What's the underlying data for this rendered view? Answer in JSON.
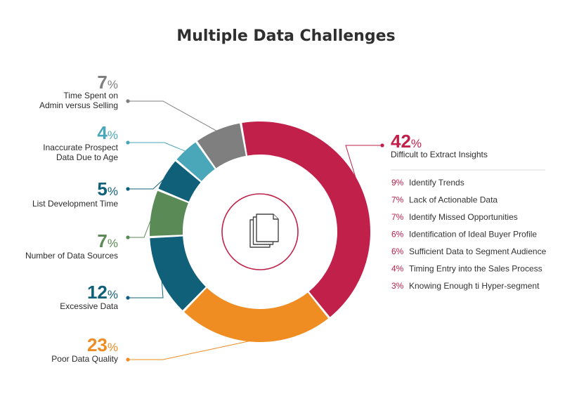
{
  "chart_data": {
    "type": "pie",
    "title": "Multiple Data Challenges",
    "slices": [
      {
        "value": 42,
        "pct_text": "42",
        "label_lines": [
          "Difficult to Extract Insights"
        ],
        "color": "#c0204a"
      },
      {
        "value": 23,
        "pct_text": "23",
        "label_lines": [
          "Poor Data Quality"
        ],
        "color": "#ef8c22"
      },
      {
        "value": 12,
        "pct_text": "12",
        "label_lines": [
          "Excessive Data"
        ],
        "color": "#11607a"
      },
      {
        "value": 7,
        "pct_text": "7",
        "label_lines": [
          "Number of Data Sources"
        ],
        "color": "#5a8a55"
      },
      {
        "value": 5,
        "pct_text": "5",
        "label_lines": [
          "List Development Time"
        ],
        "color": "#11607a"
      },
      {
        "value": 4,
        "pct_text": "4",
        "label_lines": [
          "Inaccurate Prospect",
          "Data Due to Age"
        ],
        "color": "#4aa7ba"
      },
      {
        "value": 7,
        "pct_text": "7",
        "label_lines": [
          "Time Spent on",
          "Admin versus Selling"
        ],
        "color": "#7f7f7f"
      }
    ],
    "breakdown": {
      "parent": "Difficult to Extract Insights",
      "items": [
        {
          "pct": "9%",
          "label": "Identify Trends"
        },
        {
          "pct": "7%",
          "label": "Lack of Actionable Data"
        },
        {
          "pct": "7%",
          "label": "Identify Missed Opportunities"
        },
        {
          "pct": "6%",
          "label": "Identification of Ideal Buyer Profile"
        },
        {
          "pct": "6%",
          "label": "Sufficient Data to Segment Audience"
        },
        {
          "pct": "4%",
          "label": "Timing Entry into the Sales Process"
        },
        {
          "pct": "3%",
          "label": "Knowing Enough ti Hyper-segment"
        }
      ]
    },
    "center_icon": "documents-icon",
    "colors": {
      "title": "#2f2f2f",
      "breakdown_accent": "#c0204a",
      "divider": "#dddddd"
    }
  }
}
